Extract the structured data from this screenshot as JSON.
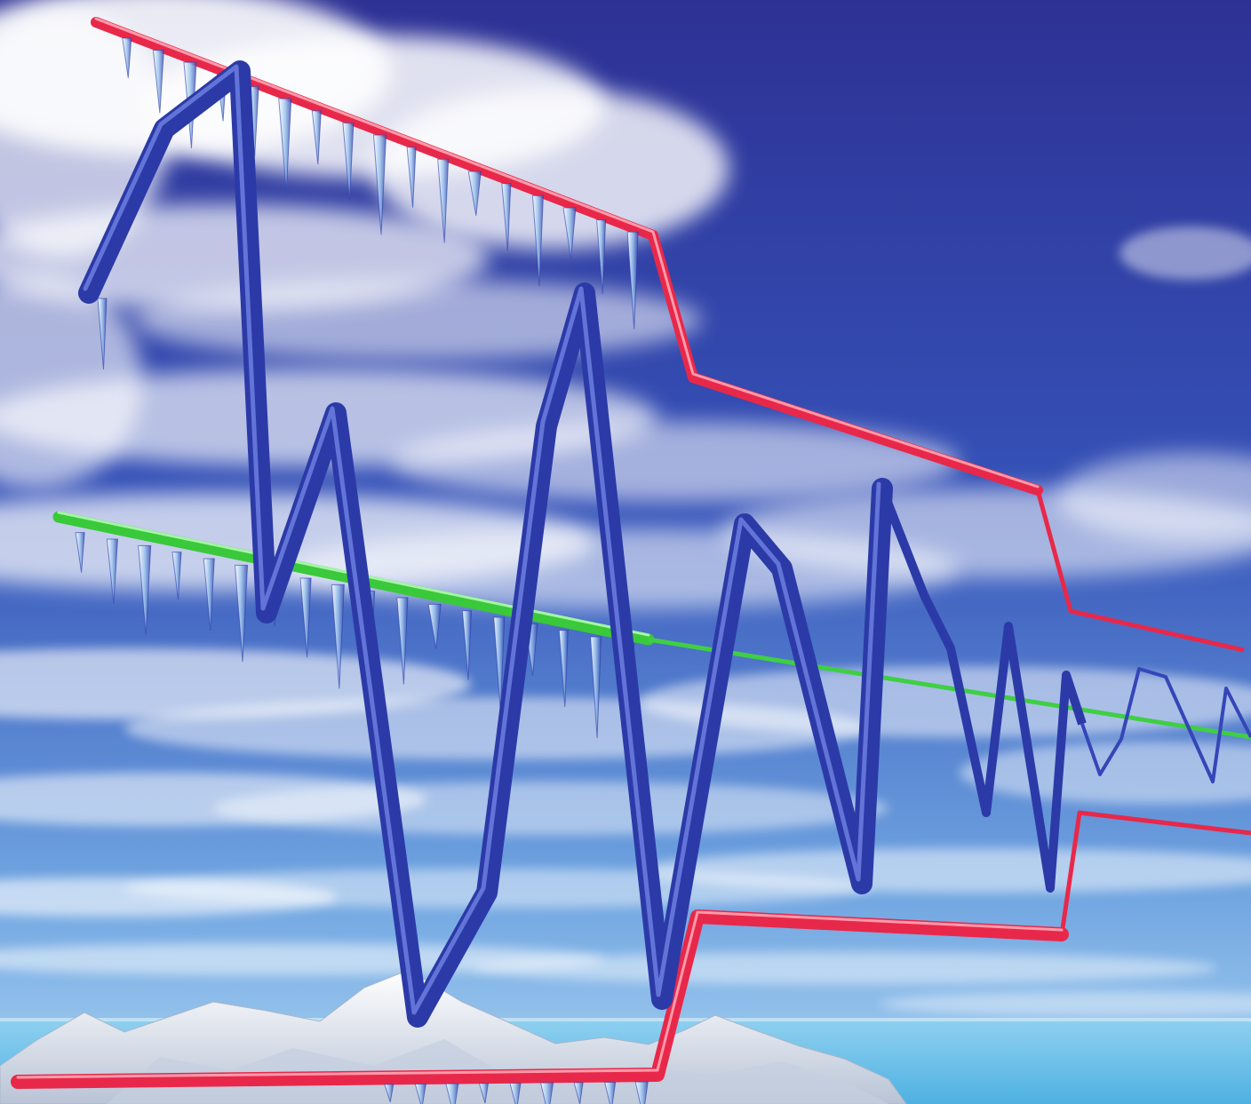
{
  "scene": {
    "colors": {
      "sky_top": "#2e3194",
      "sky_mid": "#3b5cc2",
      "sky_low": "#7fb4e6",
      "cloud": "#ffffff",
      "sea": "#6fc3ea",
      "ice": "#e9eef5",
      "envelope_line": "#e8284a",
      "center_line": "#39c93a",
      "signal_line": "#2c3aa8",
      "icicle": "#cfe6f7"
    },
    "elements": [
      "sky",
      "clouds",
      "sea",
      "ice-mounds",
      "upper-envelope-rod",
      "lower-envelope-rod",
      "center-rod",
      "signal-waveform",
      "icicles"
    ]
  }
}
